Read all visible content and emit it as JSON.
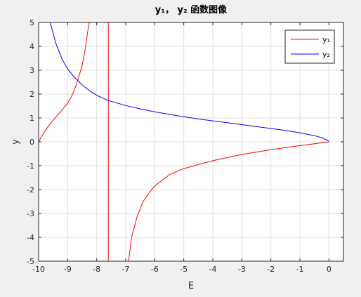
{
  "chart_data": {
    "type": "line",
    "title": "y₁， y₂ 函数图像",
    "xlabel": "E",
    "ylabel": "y",
    "xlim": [
      -10,
      0.5
    ],
    "ylim": [
      -5,
      5
    ],
    "grid": true,
    "legend_position": "top-right",
    "x_ticks": [
      -10,
      -9,
      -8,
      -7,
      -6,
      -5,
      -4,
      -3,
      -2,
      -1,
      0
    ],
    "y_ticks": [
      -5,
      -4,
      -3,
      -2,
      -1,
      0,
      1,
      2,
      3,
      4,
      5
    ],
    "x_tick_labels": [
      "-10",
      "-9",
      "-8",
      "-7",
      "-6",
      "-5",
      "-4",
      "-3",
      "-2",
      "-1",
      "0"
    ],
    "y_tick_labels": [
      "-5",
      "-4",
      "-3",
      "-2",
      "-1",
      "0",
      "1",
      "2",
      "3",
      "4",
      "5"
    ],
    "series": [
      {
        "name": "y₁",
        "color": "#ff0000",
        "segments": [
          [
            [
              -10.0,
              0.0
            ],
            [
              -9.9,
              0.22
            ],
            [
              -9.8,
              0.42
            ],
            [
              -9.6,
              0.76
            ],
            [
              -9.4,
              1.05
            ],
            [
              -9.2,
              1.32
            ],
            [
              -9.0,
              1.62
            ],
            [
              -8.9,
              1.83
            ],
            [
              -8.8,
              2.08
            ],
            [
              -8.7,
              2.4
            ],
            [
              -8.6,
              2.8
            ],
            [
              -8.5,
              3.2
            ],
            [
              -8.4,
              3.85
            ],
            [
              -8.3,
              4.7
            ],
            [
              -8.25,
              5.0
            ]
          ],
          [
            [
              -7.6,
              5.0
            ],
            [
              -7.6,
              -5.0
            ]
          ],
          [
            [
              -6.9,
              -5.0
            ],
            [
              -6.8,
              -4.0
            ],
            [
              -6.6,
              -3.1
            ],
            [
              -6.4,
              -2.5
            ],
            [
              -6.2,
              -2.15
            ],
            [
              -6.0,
              -1.85
            ],
            [
              -5.5,
              -1.38
            ],
            [
              -5.0,
              -1.12
            ],
            [
              -4.5,
              -0.95
            ],
            [
              -4.0,
              -0.79
            ],
            [
              -3.5,
              -0.66
            ],
            [
              -3.0,
              -0.53
            ],
            [
              -2.5,
              -0.43
            ],
            [
              -2.0,
              -0.33
            ],
            [
              -1.5,
              -0.24
            ],
            [
              -1.0,
              -0.16
            ],
            [
              -0.5,
              -0.08
            ],
            [
              0.0,
              0.0
            ]
          ]
        ]
      },
      {
        "name": "y₂",
        "color": "#0000ff",
        "segments": [
          [
            [
              -9.6,
              5.0
            ],
            [
              -9.4,
              4.1
            ],
            [
              -9.2,
              3.48
            ],
            [
              -9.0,
              3.05
            ],
            [
              -8.8,
              2.75
            ],
            [
              -8.5,
              2.38
            ],
            [
              -8.2,
              2.1
            ],
            [
              -8.0,
              1.95
            ],
            [
              -7.6,
              1.73
            ],
            [
              -7.0,
              1.52
            ],
            [
              -6.5,
              1.38
            ],
            [
              -6.0,
              1.26
            ],
            [
              -5.5,
              1.15
            ],
            [
              -5.0,
              1.05
            ],
            [
              -4.5,
              0.96
            ],
            [
              -4.0,
              0.88
            ],
            [
              -3.5,
              0.8
            ],
            [
              -3.0,
              0.72
            ],
            [
              -2.5,
              0.64
            ],
            [
              -2.0,
              0.56
            ],
            [
              -1.5,
              0.48
            ],
            [
              -1.0,
              0.38
            ],
            [
              -0.5,
              0.26
            ],
            [
              -0.2,
              0.16
            ],
            [
              0.0,
              0.02
            ]
          ]
        ]
      }
    ]
  }
}
